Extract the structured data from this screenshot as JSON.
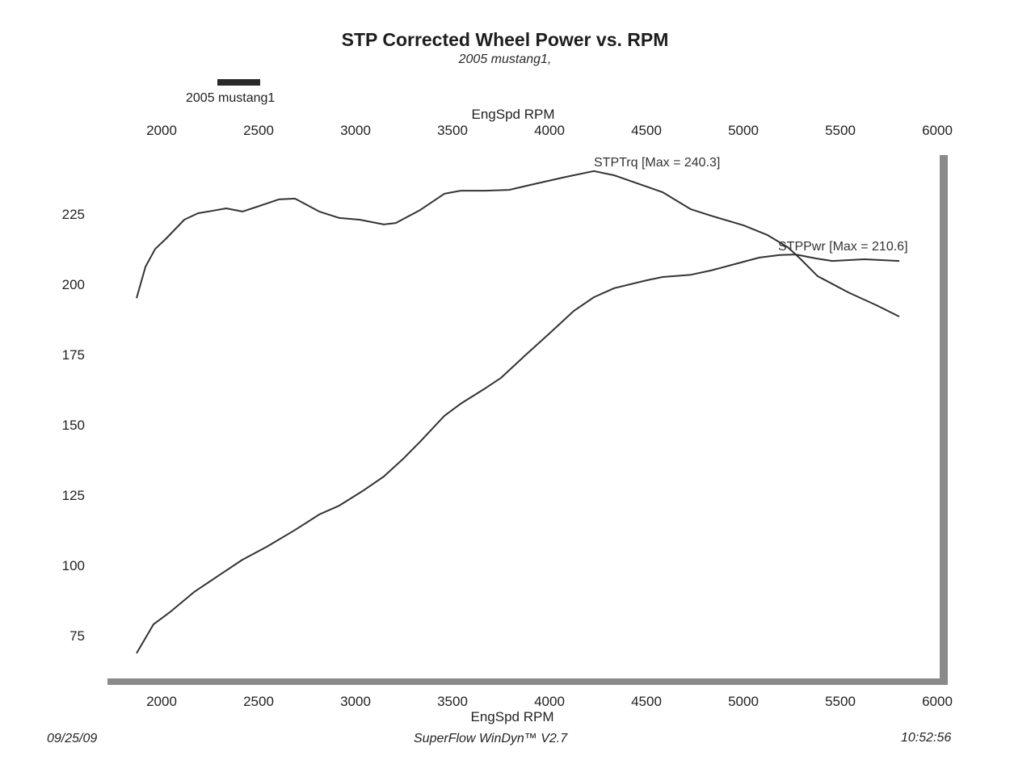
{
  "chart_data": {
    "type": "line",
    "title": "STP Corrected Wheel Power vs. RPM",
    "subtitle": "2005 mustang1,",
    "legend": {
      "entries": [
        "2005 mustang1"
      ],
      "placement": "top-left"
    },
    "xlabel": "EngSpd  RPM",
    "ylabel": "",
    "xlim": [
      1720,
      6000
    ],
    "ylim": [
      60,
      245
    ],
    "x_ticks": [
      "2000",
      "2500",
      "3000",
      "3500",
      "4000",
      "4500",
      "5000",
      "5500",
      "6000"
    ],
    "x_tick_values": [
      2000,
      2500,
      3000,
      3500,
      4000,
      4500,
      5000,
      5500,
      6000
    ],
    "y_ticks": [
      "75",
      "100",
      "125",
      "150",
      "175",
      "200",
      "225"
    ],
    "y_tick_values": [
      75,
      100,
      125,
      150,
      175,
      200,
      225
    ],
    "grid": false,
    "series": [
      {
        "name": "STPTrq",
        "annotation": "STPTrq [Max = 240.3]",
        "max": 240.3,
        "points": [
          [
            1871,
            195.1
          ],
          [
            1917,
            206.3
          ],
          [
            1967,
            212.6
          ],
          [
            2021,
            216.1
          ],
          [
            2117,
            223.0
          ],
          [
            2188,
            225.3
          ],
          [
            2258,
            226.1
          ],
          [
            2333,
            227.0
          ],
          [
            2417,
            225.9
          ],
          [
            2492,
            227.6
          ],
          [
            2604,
            230.2
          ],
          [
            2688,
            230.5
          ],
          [
            2813,
            225.9
          ],
          [
            2917,
            223.6
          ],
          [
            3021,
            223.0
          ],
          [
            3146,
            221.3
          ],
          [
            3208,
            221.8
          ],
          [
            3333,
            226.4
          ],
          [
            3458,
            232.2
          ],
          [
            3542,
            233.3
          ],
          [
            3667,
            233.3
          ],
          [
            3792,
            233.6
          ],
          [
            3917,
            235.6
          ],
          [
            4083,
            238.2
          ],
          [
            4229,
            240.3
          ],
          [
            4333,
            238.8
          ],
          [
            4583,
            232.8
          ],
          [
            4729,
            226.7
          ],
          [
            4833,
            224.4
          ],
          [
            5000,
            221.0
          ],
          [
            5125,
            217.5
          ],
          [
            5229,
            213.2
          ],
          [
            5292,
            209.2
          ],
          [
            5383,
            202.9
          ],
          [
            5542,
            197.1
          ],
          [
            5688,
            192.5
          ],
          [
            5804,
            188.5
          ]
        ]
      },
      {
        "name": "STPPwr",
        "annotation": "STPPwr [Max = 210.6]",
        "max": 210.6,
        "points": [
          [
            1871,
            68.7
          ],
          [
            1958,
            79.0
          ],
          [
            2042,
            83.3
          ],
          [
            2167,
            90.5
          ],
          [
            2292,
            96.3
          ],
          [
            2417,
            102.0
          ],
          [
            2542,
            106.6
          ],
          [
            2688,
            112.6
          ],
          [
            2813,
            118.1
          ],
          [
            2917,
            121.3
          ],
          [
            3042,
            126.7
          ],
          [
            3146,
            131.6
          ],
          [
            3250,
            138.2
          ],
          [
            3333,
            144.0
          ],
          [
            3458,
            153.2
          ],
          [
            3542,
            157.5
          ],
          [
            3667,
            162.9
          ],
          [
            3750,
            166.7
          ],
          [
            3875,
            174.7
          ],
          [
            4000,
            182.5
          ],
          [
            4125,
            190.5
          ],
          [
            4229,
            195.4
          ],
          [
            4333,
            198.6
          ],
          [
            4500,
            201.4
          ],
          [
            4583,
            202.6
          ],
          [
            4729,
            203.4
          ],
          [
            4833,
            204.9
          ],
          [
            4958,
            207.2
          ],
          [
            5083,
            209.5
          ],
          [
            5188,
            210.4
          ],
          [
            5271,
            210.6
          ],
          [
            5375,
            209.2
          ],
          [
            5458,
            208.3
          ],
          [
            5625,
            208.9
          ],
          [
            5804,
            208.3
          ]
        ]
      }
    ]
  },
  "footer": {
    "date": "09/25/09",
    "software": "SuperFlow WinDyn™ V2.7",
    "time": "10:52:56"
  },
  "colors": {
    "line": "#333333",
    "frame": "#8a8a8a"
  }
}
